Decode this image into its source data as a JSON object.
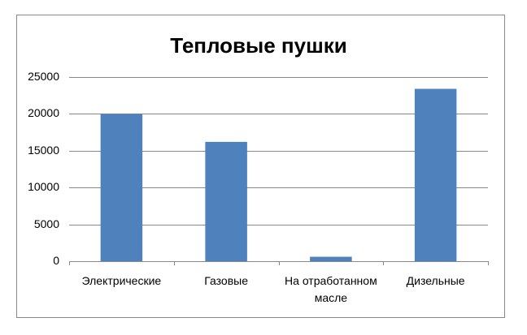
{
  "chart_data": {
    "type": "bar",
    "title": "Тепловые пушки",
    "categories": [
      "Электрические",
      "Газовые",
      "На отработанном масле",
      "Дизельные"
    ],
    "values": [
      20000,
      16200,
      600,
      23400
    ],
    "color": "#4f81bd",
    "ylim": [
      0,
      25000
    ],
    "yticks": [
      0,
      5000,
      10000,
      15000,
      20000,
      25000
    ],
    "grid": true
  }
}
